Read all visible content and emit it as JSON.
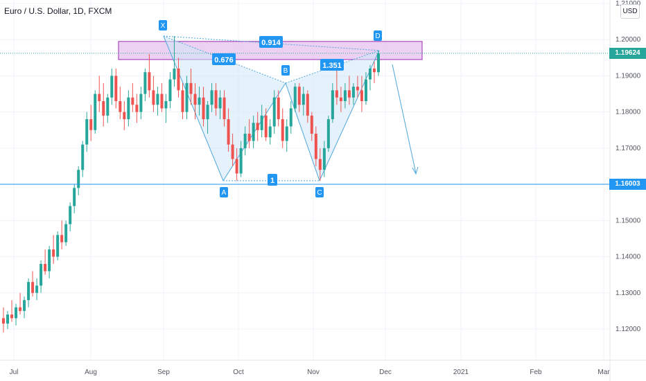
{
  "header": {
    "title": "Euro / U.S. Dollar, 1D, FXCM",
    "currency": "USD"
  },
  "price_tags": {
    "current": "1.19624",
    "support": "1.16003"
  },
  "colors": {
    "up": "#26a69a",
    "down": "#ef5350",
    "pattern_line": "#4ea7dc",
    "pattern_fill": "#cfe6f7",
    "label_bg": "#2196f3",
    "zone_fill": "#e7c5ef",
    "zone_stroke": "#9c27b0",
    "current_tag": "#26a69a",
    "support_tag": "#2196f3"
  },
  "chart_data": {
    "type": "candlestick",
    "title": "Euro / U.S. Dollar, 1D, FXCM",
    "x_ticks": [
      "Jul",
      "Aug",
      "Sep",
      "Oct",
      "Nov",
      "Dec",
      "2021",
      "Feb",
      "Mar"
    ],
    "y_ticks": [
      "1.12000",
      "1.13000",
      "1.14000",
      "1.15000",
      "1.16000",
      "1.17000",
      "1.18000",
      "1.19000",
      "1.20000",
      "1.21000"
    ],
    "ylim": [
      1.115,
      1.211
    ],
    "grid": true,
    "candles_ohlc": [
      [
        1.123,
        1.126,
        1.119,
        1.1215
      ],
      [
        1.1215,
        1.125,
        1.12,
        1.124
      ],
      [
        1.124,
        1.128,
        1.122,
        1.123
      ],
      [
        1.123,
        1.127,
        1.121,
        1.126
      ],
      [
        1.126,
        1.13,
        1.124,
        1.125
      ],
      [
        1.125,
        1.129,
        1.123,
        1.128
      ],
      [
        1.128,
        1.134,
        1.126,
        1.133
      ],
      [
        1.133,
        1.136,
        1.129,
        1.13
      ],
      [
        1.13,
        1.134,
        1.128,
        1.132
      ],
      [
        1.132,
        1.139,
        1.13,
        1.138
      ],
      [
        1.138,
        1.142,
        1.135,
        1.136
      ],
      [
        1.136,
        1.143,
        1.134,
        1.142
      ],
      [
        1.142,
        1.146,
        1.138,
        1.14
      ],
      [
        1.14,
        1.147,
        1.139,
        1.146
      ],
      [
        1.146,
        1.15,
        1.142,
        1.144
      ],
      [
        1.144,
        1.15,
        1.143,
        1.149
      ],
      [
        1.149,
        1.155,
        1.147,
        1.154
      ],
      [
        1.154,
        1.16,
        1.152,
        1.159
      ],
      [
        1.159,
        1.165,
        1.157,
        1.164
      ],
      [
        1.164,
        1.172,
        1.162,
        1.171
      ],
      [
        1.171,
        1.18,
        1.169,
        1.178
      ],
      [
        1.178,
        1.182,
        1.172,
        1.175
      ],
      [
        1.175,
        1.186,
        1.174,
        1.185
      ],
      [
        1.185,
        1.19,
        1.18,
        1.183
      ],
      [
        1.183,
        1.188,
        1.176,
        1.179
      ],
      [
        1.179,
        1.185,
        1.177,
        1.184
      ],
      [
        1.184,
        1.192,
        1.182,
        1.19
      ],
      [
        1.19,
        1.192,
        1.181,
        1.183
      ],
      [
        1.183,
        1.187,
        1.178,
        1.18
      ],
      [
        1.18,
        1.183,
        1.175,
        1.178
      ],
      [
        1.178,
        1.186,
        1.176,
        1.184
      ],
      [
        1.184,
        1.188,
        1.18,
        1.182
      ],
      [
        1.182,
        1.185,
        1.177,
        1.18
      ],
      [
        1.18,
        1.187,
        1.178,
        1.185
      ],
      [
        1.185,
        1.192,
        1.183,
        1.191
      ],
      [
        1.191,
        1.196,
        1.184,
        1.186
      ],
      [
        1.186,
        1.19,
        1.18,
        1.182
      ],
      [
        1.182,
        1.187,
        1.179,
        1.185
      ],
      [
        1.185,
        1.188,
        1.18,
        1.181
      ],
      [
        1.181,
        1.185,
        1.177,
        1.183
      ],
      [
        1.183,
        1.191,
        1.181,
        1.189
      ],
      [
        1.189,
        1.201,
        1.187,
        1.192
      ],
      [
        1.192,
        1.195,
        1.184,
        1.186
      ],
      [
        1.186,
        1.188,
        1.178,
        1.18
      ],
      [
        1.18,
        1.19,
        1.178,
        1.188
      ],
      [
        1.188,
        1.192,
        1.182,
        1.185
      ],
      [
        1.185,
        1.188,
        1.178,
        1.182
      ],
      [
        1.182,
        1.187,
        1.179,
        1.184
      ],
      [
        1.184,
        1.187,
        1.176,
        1.178
      ],
      [
        1.178,
        1.183,
        1.174,
        1.182
      ],
      [
        1.182,
        1.188,
        1.18,
        1.186
      ],
      [
        1.186,
        1.188,
        1.179,
        1.181
      ],
      [
        1.181,
        1.186,
        1.178,
        1.184
      ],
      [
        1.184,
        1.186,
        1.176,
        1.178
      ],
      [
        1.178,
        1.181,
        1.169,
        1.171
      ],
      [
        1.171,
        1.174,
        1.165,
        1.167
      ],
      [
        1.167,
        1.17,
        1.161,
        1.163
      ],
      [
        1.163,
        1.172,
        1.162,
        1.17
      ],
      [
        1.17,
        1.176,
        1.168,
        1.174
      ],
      [
        1.174,
        1.178,
        1.17,
        1.172
      ],
      [
        1.172,
        1.179,
        1.17,
        1.177
      ],
      [
        1.177,
        1.18,
        1.172,
        1.175
      ],
      [
        1.175,
        1.182,
        1.173,
        1.179
      ],
      [
        1.179,
        1.181,
        1.172,
        1.173
      ],
      [
        1.173,
        1.178,
        1.171,
        1.176
      ],
      [
        1.176,
        1.186,
        1.174,
        1.184
      ],
      [
        1.184,
        1.186,
        1.176,
        1.178
      ],
      [
        1.178,
        1.181,
        1.17,
        1.172
      ],
      [
        1.172,
        1.178,
        1.169,
        1.176
      ],
      [
        1.176,
        1.183,
        1.174,
        1.181
      ],
      [
        1.181,
        1.188,
        1.18,
        1.187
      ],
      [
        1.187,
        1.188,
        1.18,
        1.182
      ],
      [
        1.182,
        1.187,
        1.179,
        1.185
      ],
      [
        1.185,
        1.186,
        1.177,
        1.179
      ],
      [
        1.179,
        1.18,
        1.172,
        1.174
      ],
      [
        1.174,
        1.176,
        1.165,
        1.167
      ],
      [
        1.167,
        1.17,
        1.161,
        1.164
      ],
      [
        1.164,
        1.172,
        1.162,
        1.17
      ],
      [
        1.17,
        1.179,
        1.169,
        1.178
      ],
      [
        1.178,
        1.188,
        1.177,
        1.186
      ],
      [
        1.186,
        1.192,
        1.182,
        1.184
      ],
      [
        1.184,
        1.187,
        1.18,
        1.183
      ],
      [
        1.183,
        1.188,
        1.181,
        1.186
      ],
      [
        1.186,
        1.19,
        1.182,
        1.184
      ],
      [
        1.184,
        1.188,
        1.182,
        1.187
      ],
      [
        1.187,
        1.19,
        1.184,
        1.186
      ],
      [
        1.186,
        1.19,
        1.18,
        1.183
      ],
      [
        1.183,
        1.191,
        1.182,
        1.189
      ],
      [
        1.189,
        1.193,
        1.186,
        1.192
      ],
      [
        1.192,
        1.194,
        1.188,
        1.191
      ],
      [
        1.191,
        1.197,
        1.19,
        1.1962
      ]
    ],
    "pattern": {
      "points": [
        {
          "label": "X",
          "value": 1.201
        },
        {
          "label": "A",
          "value": 1.161
        },
        {
          "label": "B",
          "value": 1.188
        },
        {
          "label": "C",
          "value": 1.161
        },
        {
          "label": "D",
          "value": 1.197
        }
      ],
      "ratios": [
        {
          "label": "0.676",
          "between": "XA-B"
        },
        {
          "label": "1.351",
          "between": "BC-D"
        },
        {
          "label": "0.914",
          "between": "XA-D"
        },
        {
          "label": "1",
          "between": "A-C"
        }
      ]
    },
    "zone": {
      "from": 1.1945,
      "to": 1.1995
    },
    "support_line": 1.16003,
    "current_line": 1.19624
  }
}
